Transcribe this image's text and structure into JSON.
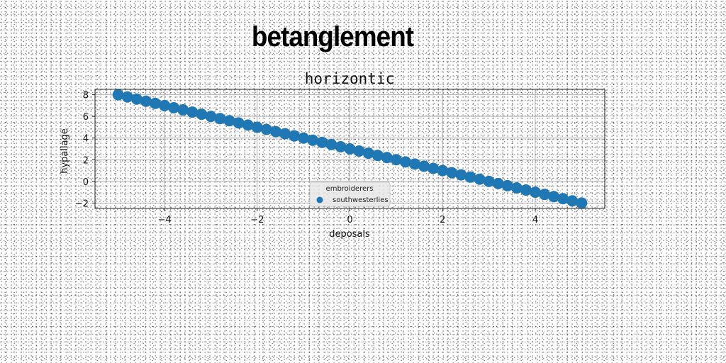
{
  "suptitle": "betanglement",
  "chart_data": {
    "type": "scatter",
    "title": "horizontic",
    "xlabel": "deposals",
    "ylabel": "hypallage",
    "xlim": [
      -5.5,
      5.5
    ],
    "ylim": [
      -2.5,
      8.5
    ],
    "xticks": [
      -4,
      -2,
      0,
      2,
      4
    ],
    "xtick_labels": [
      "−4",
      "−2",
      "0",
      "2",
      "4"
    ],
    "yticks": [
      -2,
      0,
      2,
      4,
      6,
      8
    ],
    "ytick_labels": [
      "−2",
      "0",
      "2",
      "4",
      "6",
      "8"
    ],
    "grid": true,
    "legend": {
      "title": "embroiderers",
      "placement": "lower center"
    },
    "series": [
      {
        "name": "southwesterlies",
        "color": "#1f77b4",
        "x": [
          -5.0,
          -4.8,
          -4.6,
          -4.4,
          -4.2,
          -4.0,
          -3.8,
          -3.6,
          -3.4,
          -3.2,
          -3.0,
          -2.8,
          -2.6,
          -2.4,
          -2.2,
          -2.0,
          -1.8,
          -1.6,
          -1.4,
          -1.2,
          -1.0,
          -0.8,
          -0.6,
          -0.4,
          -0.2,
          0.0,
          0.2,
          0.4,
          0.6,
          0.8,
          1.0,
          1.2,
          1.4,
          1.6,
          1.8,
          2.0,
          2.2,
          2.4,
          2.6,
          2.8,
          3.0,
          3.2,
          3.4,
          3.6,
          3.8,
          4.0,
          4.2,
          4.4,
          4.6,
          4.8,
          5.0
        ],
        "y": [
          8.0,
          7.8,
          7.6,
          7.4,
          7.2,
          7.0,
          6.8,
          6.6,
          6.4,
          6.2,
          6.0,
          5.8,
          5.6,
          5.4,
          5.2,
          5.0,
          4.8,
          4.6,
          4.4,
          4.2,
          4.0,
          3.8,
          3.6,
          3.4,
          3.2,
          3.0,
          2.8,
          2.6,
          2.4,
          2.2,
          2.0,
          1.8,
          1.6,
          1.4,
          1.2,
          1.0,
          0.8,
          0.6,
          0.4,
          0.2,
          0.0,
          -0.2,
          -0.4,
          -0.6,
          -0.8,
          -1.0,
          -1.2,
          -1.4,
          -1.6,
          -1.8,
          -2.0
        ]
      }
    ]
  }
}
